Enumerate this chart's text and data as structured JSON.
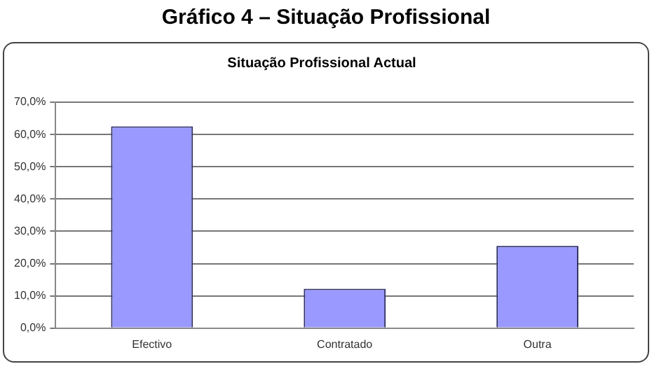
{
  "chart_data": {
    "type": "bar",
    "title": "Gráfico 4 – Situação Profissional",
    "subtitle": "Situação Profissional Actual",
    "categories": [
      "Efectivo",
      "Contratado",
      "Outra"
    ],
    "values": [
      62.5,
      12.2,
      25.5
    ],
    "color": "#9999ff",
    "ylim": [
      0,
      70
    ],
    "yticks": [
      {
        "value": 0,
        "label": "0,0%"
      },
      {
        "value": 10,
        "label": "10,0%"
      },
      {
        "value": 20,
        "label": "20,0%"
      },
      {
        "value": 30,
        "label": "30,0%"
      },
      {
        "value": 40,
        "label": "40,0%"
      },
      {
        "value": 50,
        "label": "50,0%"
      },
      {
        "value": 60,
        "label": "60,0%"
      },
      {
        "value": 70,
        "label": "70,0%"
      }
    ],
    "grid": "y",
    "legend": false
  }
}
